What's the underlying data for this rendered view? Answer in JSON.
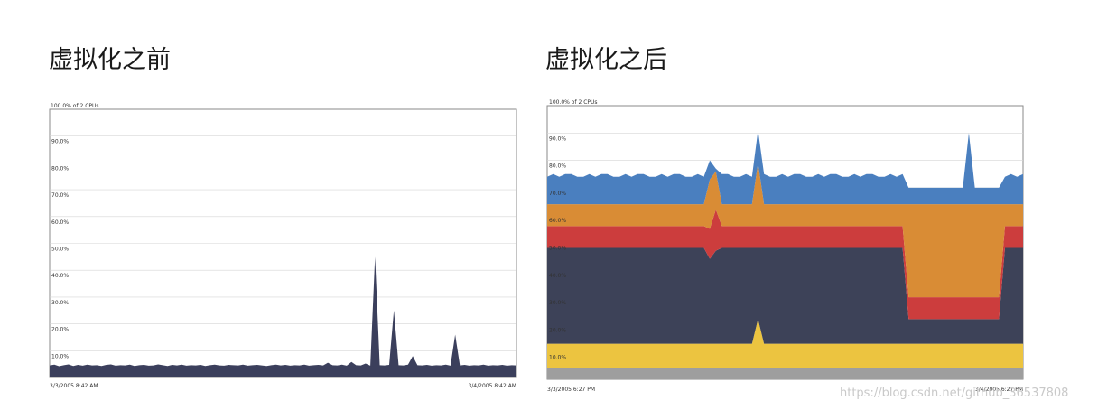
{
  "chart_data": [
    {
      "type": "area",
      "title": "虚拟化之前",
      "ylabel": "100.0% of 2 CPUs",
      "ylim": [
        0,
        100
      ],
      "yticks": [
        "10.0%",
        "20.0%",
        "30.0%",
        "40.0%",
        "50.0%",
        "60.0%",
        "70.0%",
        "80.0%",
        "90.0%"
      ],
      "x_start": "3/3/2005 8:42 AM",
      "x_end": "3/4/2005 8:42 AM",
      "grid": true,
      "series": [
        {
          "color": "#3b3f5c",
          "values": [
            4.5,
            4.8,
            4.2,
            4.6,
            4.9,
            4.3,
            4.7,
            4.4,
            4.8,
            4.5,
            4.6,
            4.3,
            4.7,
            4.9,
            4.4,
            4.6,
            4.5,
            4.8,
            4.3,
            4.6,
            4.7,
            4.4,
            4.5,
            4.9,
            4.6,
            4.3,
            4.7,
            4.5,
            4.8,
            4.4,
            4.6,
            4.5,
            4.7,
            4.3,
            4.6,
            4.8,
            4.5,
            4.4,
            4.7,
            4.6,
            4.5,
            4.8,
            4.4,
            4.6,
            4.7,
            4.5,
            4.3,
            4.6,
            4.8,
            4.5,
            4.7,
            4.4,
            4.6,
            4.5,
            4.8,
            4.4,
            4.6,
            4.7,
            4.5,
            5.5,
            4.6,
            4.5,
            4.8,
            4.4,
            5.8,
            4.6,
            4.5,
            5.2,
            4.4,
            45,
            4.6,
            4.5,
            4.7,
            25,
            4.6,
            4.5,
            4.8,
            8,
            4.6,
            4.5,
            4.7,
            4.4,
            4.6,
            4.5,
            4.8,
            4.4,
            16,
            4.5,
            4.7,
            4.4,
            4.6,
            4.5,
            4.8,
            4.4,
            4.6,
            4.5,
            4.7,
            4.4,
            4.6,
            4.5
          ]
        }
      ]
    },
    {
      "type": "area",
      "stacked": true,
      "title": "虚拟化之后",
      "ylabel": "100.0% of 2 CPUs",
      "ylim": [
        0,
        100
      ],
      "yticks": [
        "10.0%",
        "20.0%",
        "30.0%",
        "40.0%",
        "50.0%",
        "60.0%",
        "70.0%",
        "80.0%",
        "90.0%"
      ],
      "x_start": "3/3/2005 6:27 PM",
      "x_end": "3/4/2005 6:27 PM",
      "grid": true,
      "series": [
        {
          "color": "#9e9e9e",
          "values": [
            4,
            4,
            4,
            4,
            4,
            4,
            4,
            4,
            4,
            4,
            4,
            4,
            4,
            4,
            4,
            4,
            4,
            4,
            4,
            4,
            4,
            4,
            4,
            4,
            4,
            4,
            4,
            4,
            4,
            4,
            4,
            4,
            4,
            4,
            4,
            4,
            4,
            4,
            4,
            4,
            4,
            4,
            4,
            4,
            4,
            4,
            4,
            4,
            4,
            4,
            4,
            4,
            4,
            4,
            4,
            4,
            4,
            4,
            4,
            4,
            4,
            4,
            4,
            4,
            4,
            4,
            4,
            4,
            4,
            4,
            4,
            4,
            4,
            4,
            4,
            4,
            4,
            4,
            4,
            4
          ]
        },
        {
          "color": "#ecc440",
          "values": [
            9,
            9,
            9,
            9,
            9,
            9,
            9,
            9,
            9,
            9,
            9,
            9,
            9,
            9,
            9,
            9,
            9,
            9,
            9,
            9,
            9,
            9,
            9,
            9,
            9,
            9,
            9,
            9,
            9,
            9,
            9,
            9,
            9,
            9,
            9,
            18,
            9,
            9,
            9,
            9,
            9,
            9,
            9,
            9,
            9,
            9,
            9,
            9,
            9,
            9,
            9,
            9,
            9,
            9,
            9,
            9,
            9,
            9,
            9,
            9,
            9,
            9,
            9,
            9,
            9,
            9,
            9,
            9,
            9,
            9,
            9,
            9,
            9,
            9,
            9,
            9,
            9,
            9,
            9,
            9
          ]
        },
        {
          "color": "#3d4258",
          "values": [
            35,
            35,
            35,
            35,
            35,
            35,
            35,
            35,
            35,
            35,
            35,
            35,
            35,
            35,
            35,
            35,
            35,
            35,
            35,
            35,
            35,
            35,
            35,
            35,
            35,
            35,
            35,
            31,
            34,
            35,
            35,
            35,
            35,
            35,
            35,
            26,
            35,
            35,
            35,
            35,
            35,
            35,
            35,
            35,
            35,
            35,
            35,
            35,
            35,
            35,
            35,
            35,
            35,
            35,
            35,
            35,
            35,
            35,
            35,
            35,
            9,
            9,
            9,
            9,
            9,
            9,
            9,
            9,
            9,
            9,
            9,
            9,
            9,
            9,
            9,
            9,
            35,
            35,
            35,
            35
          ]
        },
        {
          "color": "#cc3d3d",
          "values": [
            8,
            8,
            8,
            8,
            8,
            8,
            8,
            8,
            8,
            8,
            8,
            8,
            8,
            8,
            8,
            8,
            8,
            8,
            8,
            8,
            8,
            8,
            8,
            8,
            8,
            8,
            8,
            11,
            15,
            8,
            8,
            8,
            8,
            8,
            8,
            8,
            8,
            8,
            8,
            8,
            8,
            8,
            8,
            8,
            8,
            8,
            8,
            8,
            8,
            8,
            8,
            8,
            8,
            8,
            8,
            8,
            8,
            8,
            8,
            8,
            8,
            8,
            8,
            8,
            8,
            8,
            8,
            8,
            8,
            8,
            8,
            8,
            8,
            8,
            8,
            8,
            8,
            8,
            8,
            8
          ]
        },
        {
          "color": "#d98c35",
          "values": [
            8,
            8,
            8,
            8,
            8,
            8,
            8,
            8,
            8,
            8,
            8,
            8,
            8,
            8,
            8,
            8,
            8,
            8,
            8,
            8,
            8,
            8,
            8,
            8,
            8,
            8,
            8,
            18,
            14,
            8,
            8,
            8,
            8,
            8,
            8,
            23,
            8,
            8,
            8,
            8,
            8,
            8,
            8,
            8,
            8,
            8,
            8,
            8,
            8,
            8,
            8,
            8,
            8,
            8,
            8,
            8,
            8,
            8,
            8,
            8,
            34,
            34,
            34,
            34,
            34,
            34,
            34,
            34,
            34,
            34,
            34,
            34,
            34,
            34,
            34,
            34,
            8,
            8,
            8,
            8
          ]
        },
        {
          "color": "#4a7fbf",
          "values": [
            10,
            11,
            10,
            11,
            11,
            10,
            10,
            11,
            10,
            11,
            11,
            10,
            10,
            11,
            10,
            11,
            11,
            10,
            10,
            11,
            10,
            11,
            11,
            10,
            10,
            11,
            10,
            7,
            1,
            11,
            11,
            10,
            10,
            11,
            10,
            12,
            11,
            10,
            10,
            11,
            10,
            11,
            11,
            10,
            10,
            11,
            10,
            11,
            11,
            10,
            10,
            11,
            10,
            11,
            11,
            10,
            10,
            11,
            10,
            11,
            6,
            6,
            6,
            6,
            6,
            6,
            6,
            6,
            6,
            6,
            26,
            6,
            6,
            6,
            6,
            6,
            10,
            11,
            10,
            11
          ]
        }
      ]
    }
  ],
  "watermark": "https://blog.csdn.net/github_36537808"
}
